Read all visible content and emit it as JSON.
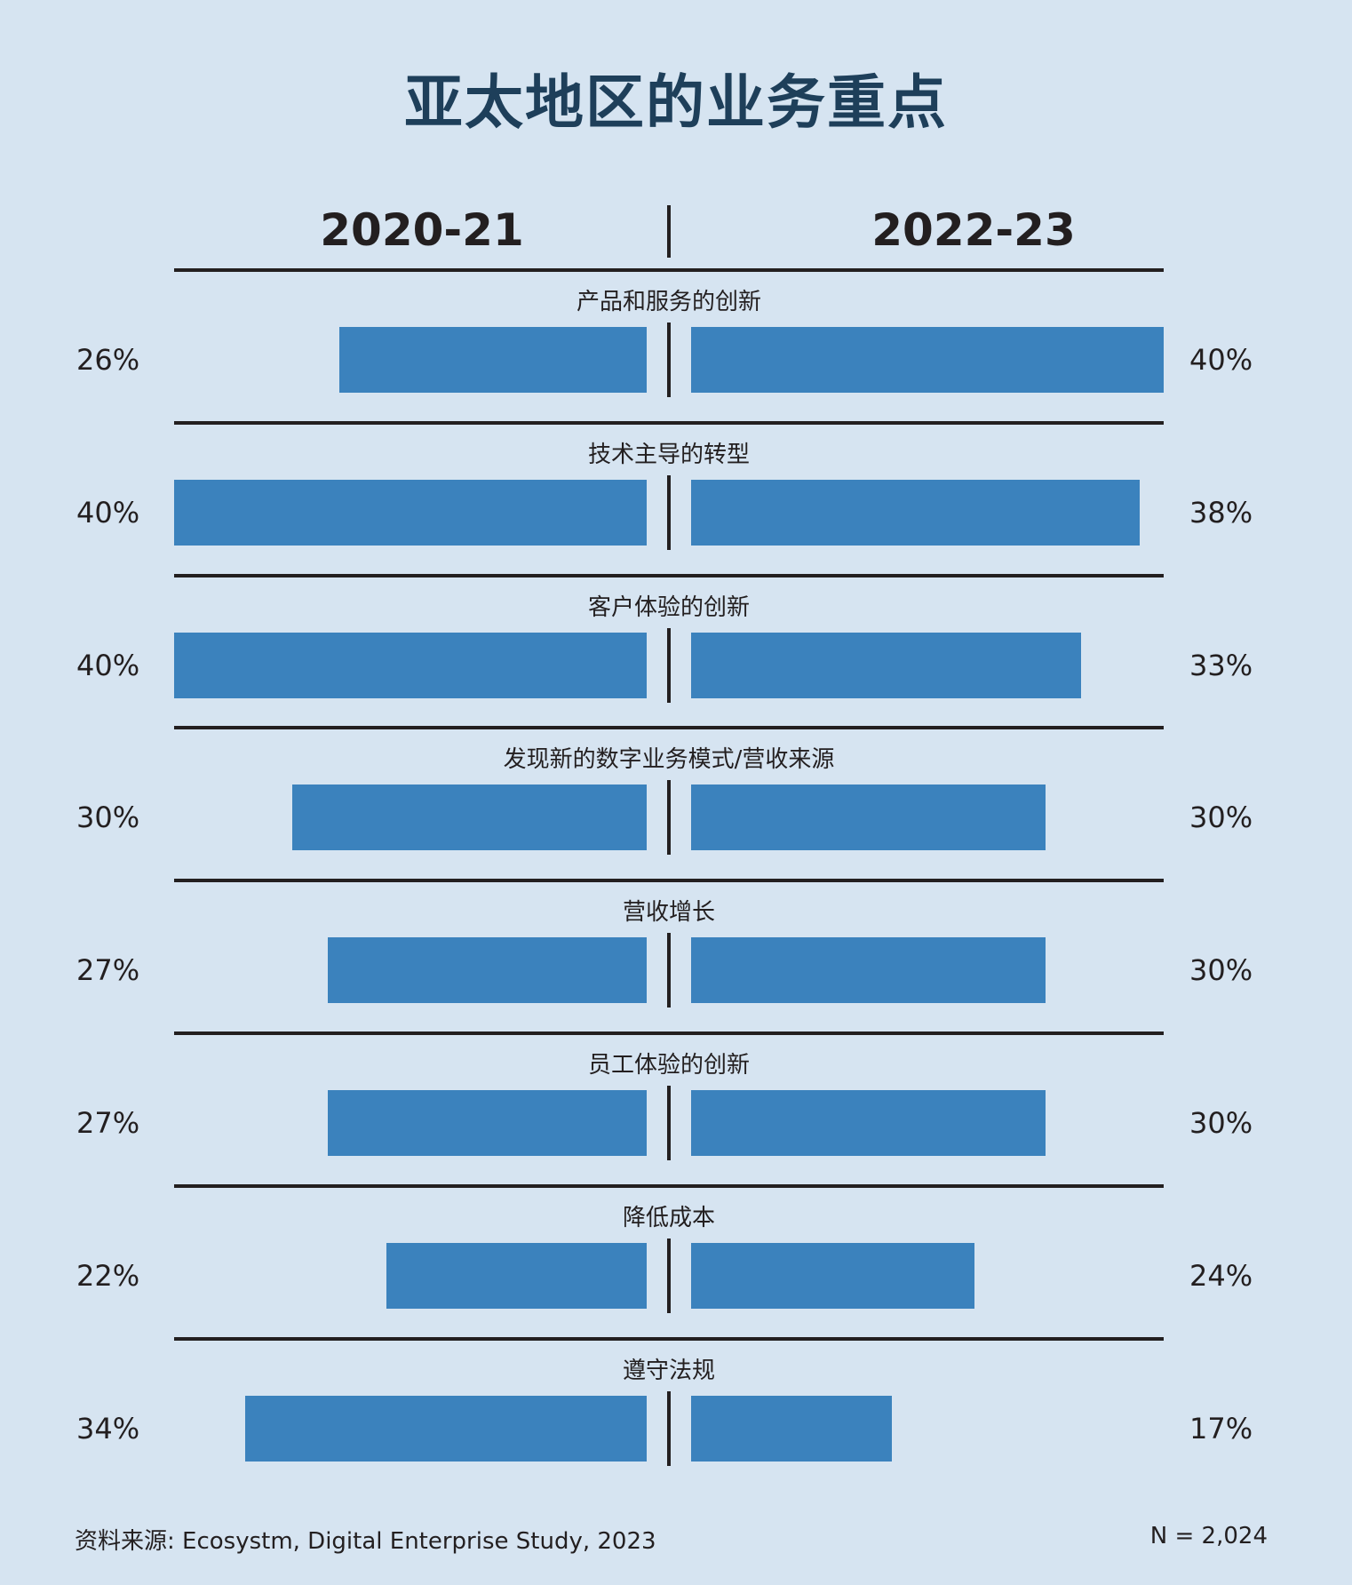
{
  "chart_data": {
    "type": "bar",
    "title": "亚太地区的业务重点",
    "series": [
      {
        "name": "2020-21",
        "values": [
          26,
          40,
          40,
          30,
          27,
          27,
          22,
          34
        ]
      },
      {
        "name": "2022-23",
        "values": [
          40,
          38,
          33,
          30,
          30,
          30,
          24,
          17
        ]
      }
    ],
    "categories": [
      "产品和服务的创新",
      "技术主导的转型",
      "客户体验的创新",
      "发现新的数字业务模式/营收来源",
      "营收增长",
      "员工体验的创新",
      "降低成本",
      "遵守法规"
    ],
    "value_suffix": "%",
    "xlim": [
      0,
      40
    ],
    "colors": {
      "bar": "#3b82bd",
      "background": "#d6e4f1",
      "title": "#1e3f5a"
    }
  },
  "footer": {
    "source": "资料来源: Ecosystm, Digital Enterprise Study, 2023",
    "n": "N = 2,024"
  }
}
